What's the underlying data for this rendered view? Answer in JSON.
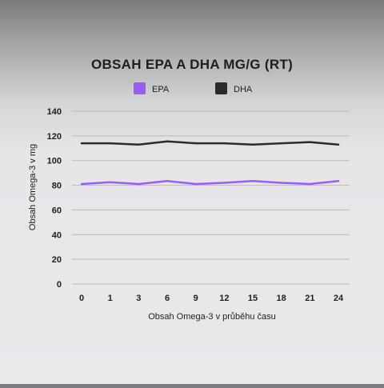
{
  "chart_data": {
    "type": "line",
    "title": "OBSAH EPA A DHA MG/G (RT)",
    "xlabel": "Obsah Omega-3 v průběhu času",
    "ylabel": "Obsah Omega-3 v mg",
    "categories": [
      "0",
      "1",
      "3",
      "6",
      "9",
      "12",
      "15",
      "18",
      "21",
      "24"
    ],
    "ylim": [
      0,
      140
    ],
    "yticks": [
      0,
      20,
      40,
      60,
      80,
      100,
      120,
      140
    ],
    "grid": true,
    "legend_position": "top",
    "series": [
      {
        "name": "EPA",
        "color": "#9b5cf6",
        "values": [
          81,
          82.5,
          81,
          83.5,
          81,
          82,
          83.5,
          82,
          81,
          83.5
        ]
      },
      {
        "name": "DHA",
        "color": "#2b2b2b",
        "values": [
          114,
          114,
          113,
          115.5,
          114,
          114,
          113,
          114,
          115,
          113
        ]
      }
    ]
  }
}
